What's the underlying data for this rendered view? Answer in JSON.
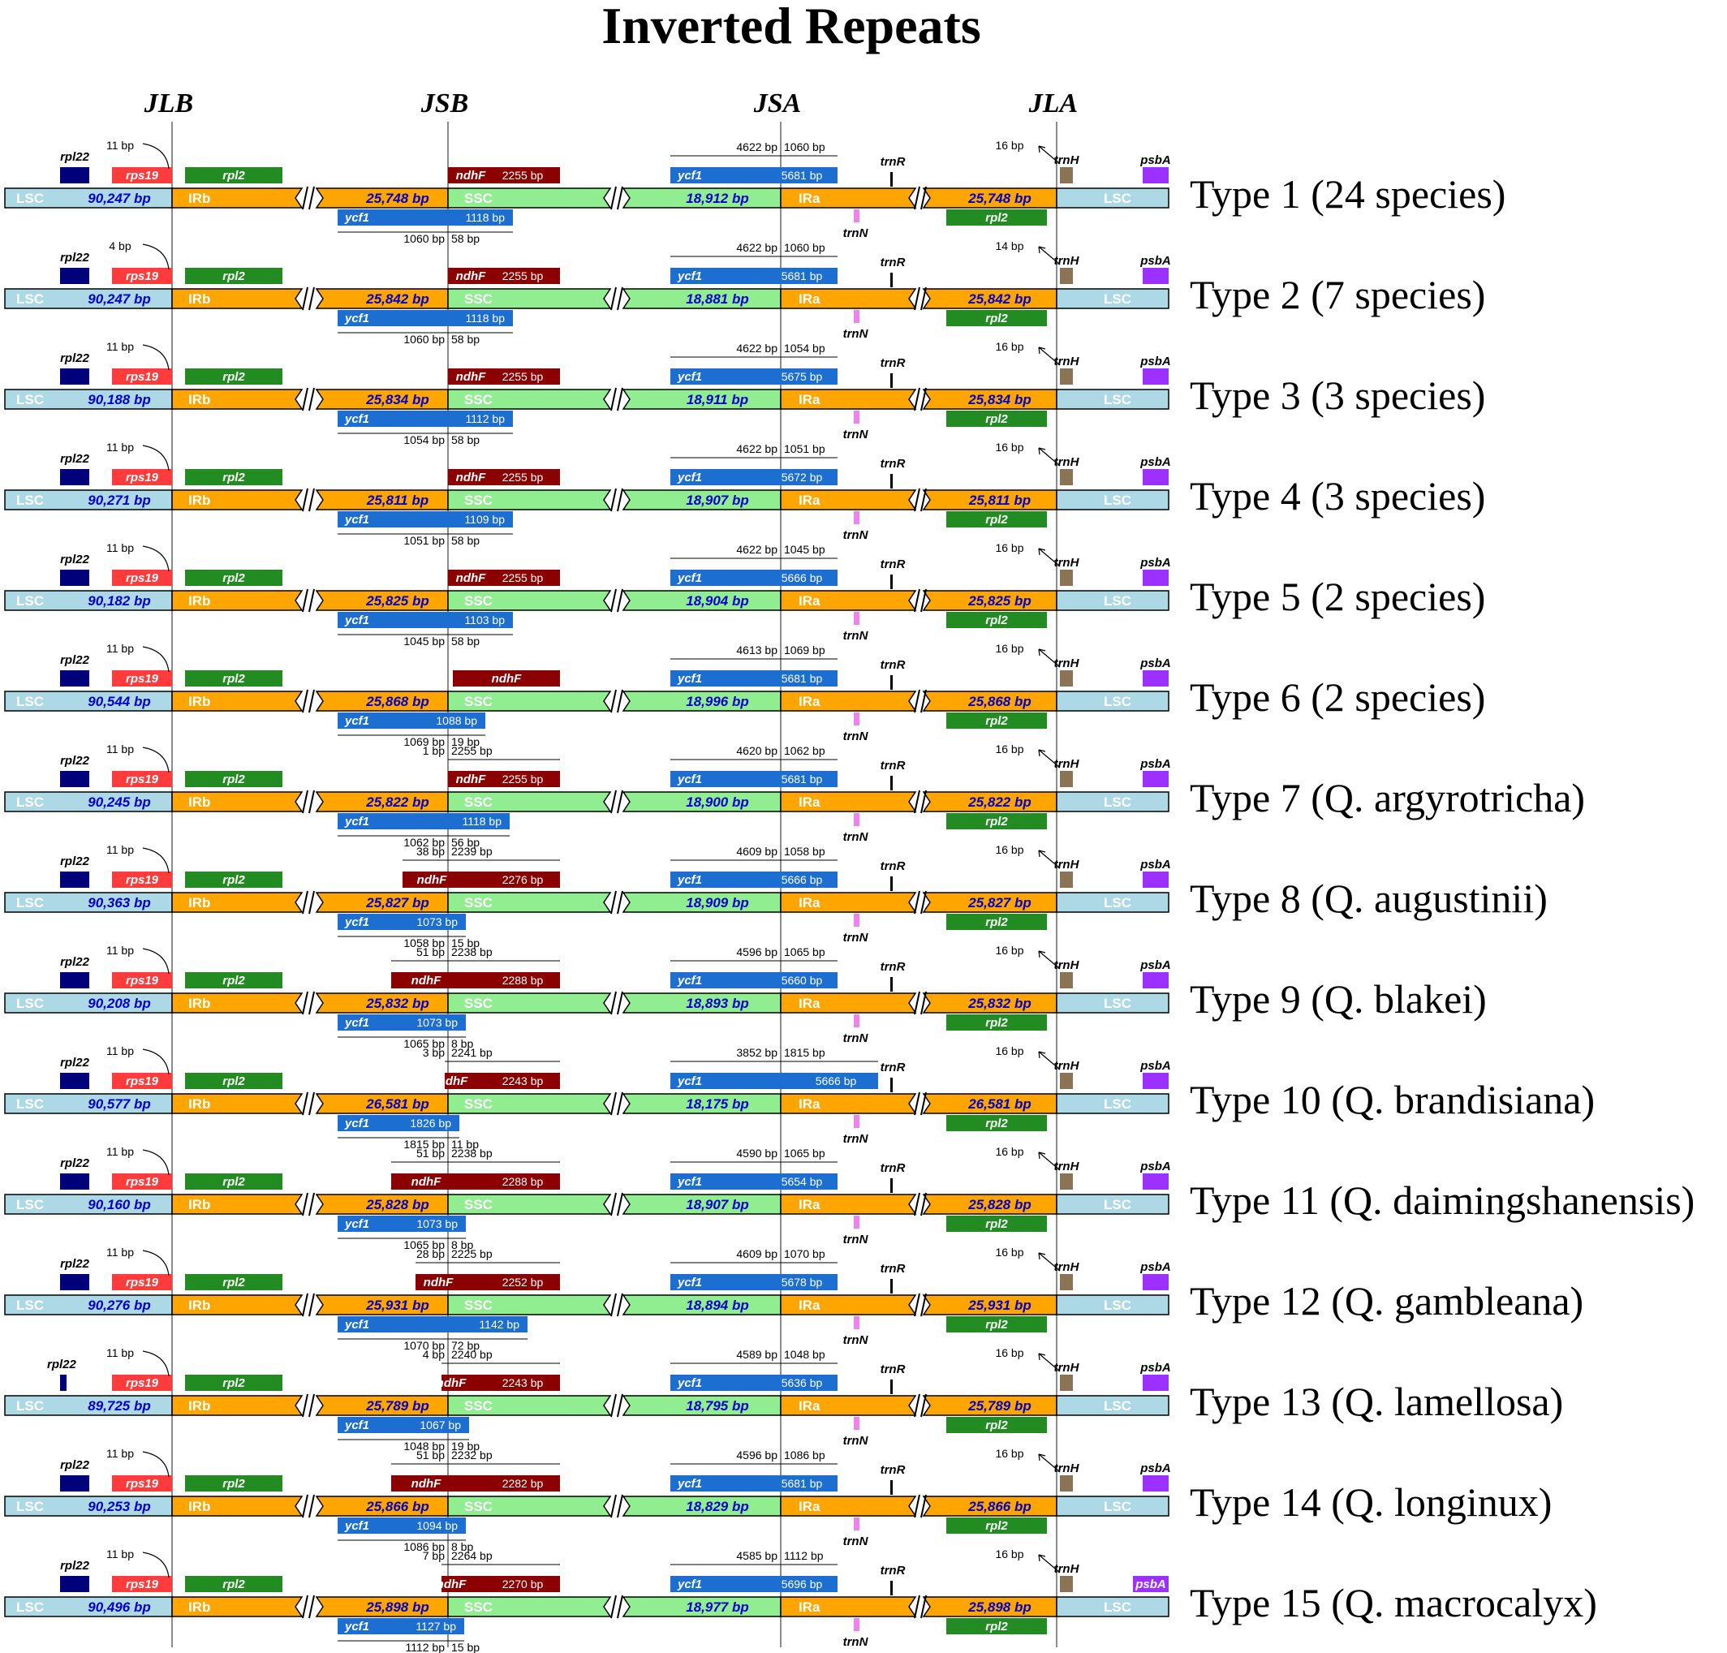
{
  "title": "Inverted Repeats",
  "junctions": [
    "JLB",
    "JSB",
    "JSA",
    "JLA"
  ],
  "region_labels": {
    "lsc": "LSC",
    "irb": "IRb",
    "ssc": "SSC",
    "ira": "IRa"
  },
  "gene_names": {
    "rpl22": "rpl22",
    "rps19": "rps19",
    "rpl2": "rpl2",
    "ndhF": "ndhF",
    "ycf1": "ycf1",
    "trnR": "trnR",
    "trnN": "trnN",
    "trnH": "trnH",
    "psbA": "psbA"
  },
  "colors": {
    "lsc": "#add8e6",
    "ir": "#ffa500",
    "ssc": "#90ee90",
    "rpl22": "#00007a",
    "rps19": "#ff3b3b",
    "rpl2": "#228b22",
    "ndhF": "#8b0000",
    "ycf1": "#1c6ed1",
    "trnR": "#000000",
    "trnN": "#ee82ee",
    "trnH": "#8b7355",
    "psbA": "#9b30ff",
    "size_text": "#0000cd",
    "label_text": "#ffffff"
  },
  "rows": [
    {
      "type": "Type 1 (24 species)",
      "lsc": "90,247 bp",
      "ir": "25,748 bp",
      "ssc": "18,912 bp",
      "rps19_gap": "11 bp",
      "ndhF_len": "2255 bp",
      "ndhF_split": [
        "",
        ""
      ],
      "ycf1b_len": "1118 bp",
      "ycf1b_split": [
        "1060 bp",
        "58 bp"
      ],
      "ycf1a_len": "5681 bp",
      "ycf1a_split": [
        "4622 bp",
        "1060 bp"
      ],
      "trnH_gap": "16 bp"
    },
    {
      "type": "Type 2 (7 species)",
      "lsc": "90,247 bp",
      "ir": "25,842 bp",
      "ssc": "18,881 bp",
      "rps19_gap": "4 bp",
      "ndhF_len": "2255 bp",
      "ndhF_split": [
        "",
        ""
      ],
      "ycf1b_len": "1118 bp",
      "ycf1b_split": [
        "1060 bp",
        "58 bp"
      ],
      "ycf1a_len": "5681 bp",
      "ycf1a_split": [
        "4622 bp",
        "1060 bp"
      ],
      "trnH_gap": "14 bp"
    },
    {
      "type": "Type 3 (3 species)",
      "lsc": "90,188 bp",
      "ir": "25,834 bp",
      "ssc": "18,911 bp",
      "rps19_gap": "11 bp",
      "ndhF_len": "2255 bp",
      "ndhF_split": [
        "",
        ""
      ],
      "ycf1b_len": "1112 bp",
      "ycf1b_split": [
        "1054 bp",
        "58 bp"
      ],
      "ycf1a_len": "5675 bp",
      "ycf1a_split": [
        "4622 bp",
        "1054 bp"
      ],
      "trnH_gap": "16 bp"
    },
    {
      "type": "Type 4 (3 species)",
      "lsc": "90,271 bp",
      "ir": "25,811 bp",
      "ssc": "18,907 bp",
      "rps19_gap": "11 bp",
      "ndhF_len": "2255 bp",
      "ndhF_split": [
        "",
        ""
      ],
      "ycf1b_len": "1109 bp",
      "ycf1b_split": [
        "1051 bp",
        "58 bp"
      ],
      "ycf1a_len": "5672 bp",
      "ycf1a_split": [
        "4622 bp",
        "1051 bp"
      ],
      "trnH_gap": "16 bp"
    },
    {
      "type": "Type 5 (2 species)",
      "lsc": "90,182 bp",
      "ir": "25,825 bp",
      "ssc": "18,904 bp",
      "rps19_gap": "11 bp",
      "ndhF_len": "2255 bp",
      "ndhF_split": [
        "",
        ""
      ],
      "ycf1b_len": "1103 bp",
      "ycf1b_split": [
        "1045 bp",
        "58 bp"
      ],
      "ycf1a_len": "5666 bp",
      "ycf1a_split": [
        "4622 bp",
        "1045 bp"
      ],
      "trnH_gap": "16 bp"
    },
    {
      "type": "Type 6 (2 species)",
      "lsc": "90,544 bp",
      "ir": "25,868 bp",
      "ssc": "18,996 bp",
      "rps19_gap": "11 bp",
      "ndhF_len": "",
      "ndhF_split": [
        "",
        ""
      ],
      "ycf1b_len": "1088 bp",
      "ycf1b_split": [
        "1069 bp",
        "19 bp"
      ],
      "ycf1a_len": "5681 bp",
      "ycf1a_split": [
        "4613 bp",
        "1069 bp"
      ],
      "trnH_gap": "16 bp"
    },
    {
      "type": "Type 7 (Q. argyrotricha)",
      "lsc": "90,245 bp",
      "ir": "25,822 bp",
      "ssc": "18,900 bp",
      "rps19_gap": "11 bp",
      "ndhF_len": "2255 bp",
      "ndhF_split": [
        "1 bp",
        "2255 bp"
      ],
      "ycf1b_len": "1118 bp",
      "ycf1b_split": [
        "1062 bp",
        "56 bp"
      ],
      "ycf1a_len": "5681 bp",
      "ycf1a_split": [
        "4620 bp",
        "1062 bp"
      ],
      "trnH_gap": "16 bp"
    },
    {
      "type": "Type 8 (Q. augustinii)",
      "lsc": "90,363 bp",
      "ir": "25,827 bp",
      "ssc": "18,909 bp",
      "rps19_gap": "11 bp",
      "ndhF_len": "2276 bp",
      "ndhF_split": [
        "38 bp",
        "2239 bp"
      ],
      "ycf1b_len": "1073 bp",
      "ycf1b_split": [
        "1058 bp",
        "15 bp"
      ],
      "ycf1a_len": "5666 bp",
      "ycf1a_split": [
        "4609 bp",
        "1058 bp"
      ],
      "trnH_gap": "16 bp"
    },
    {
      "type": "Type 9 (Q. blakei)",
      "lsc": "90,208 bp",
      "ir": "25,832 bp",
      "ssc": "18,893 bp",
      "rps19_gap": "11 bp",
      "ndhF_len": "2288 bp",
      "ndhF_split": [
        "51 bp",
        "2238 bp"
      ],
      "ycf1b_len": "1073 bp",
      "ycf1b_split": [
        "1065 bp",
        "8 bp"
      ],
      "ycf1a_len": "5660 bp",
      "ycf1a_split": [
        "4596 bp",
        "1065 bp"
      ],
      "trnH_gap": "16 bp"
    },
    {
      "type": "Type 10 (Q. brandisiana)",
      "lsc": "90,577 bp",
      "ir": "26,581 bp",
      "ssc": "18,175 bp",
      "rps19_gap": "11 bp",
      "ndhF_len": "2243 bp",
      "ndhF_split": [
        "3 bp",
        "2241 bp"
      ],
      "ycf1b_len": "1826 bp",
      "ycf1b_split": [
        "1815 bp",
        "11 bp"
      ],
      "ycf1a_len": "5666 bp",
      "ycf1a_split": [
        "3852 bp",
        "1815 bp"
      ],
      "trnH_gap": "16 bp"
    },
    {
      "type": "Type 11 (Q. daimingshanensis)",
      "lsc": "90,160 bp",
      "ir": "25,828 bp",
      "ssc": "18,907 bp",
      "rps19_gap": "11 bp",
      "ndhF_len": "2288 bp",
      "ndhF_split": [
        "51 bp",
        "2238 bp"
      ],
      "ycf1b_len": "1073 bp",
      "ycf1b_split": [
        "1065 bp",
        "8 bp"
      ],
      "ycf1a_len": "5654 bp",
      "ycf1a_split": [
        "4590 bp",
        "1065 bp"
      ],
      "trnH_gap": "16 bp"
    },
    {
      "type": "Type 12 (Q. gambleana)",
      "lsc": "90,276 bp",
      "ir": "25,931 bp",
      "ssc": "18,894 bp",
      "rps19_gap": "11 bp",
      "ndhF_len": "2252 bp",
      "ndhF_split": [
        "28 bp",
        "2225 bp"
      ],
      "ycf1b_len": "1142 bp",
      "ycf1b_split": [
        "1070 bp",
        "72 bp"
      ],
      "ycf1a_len": "5678 bp",
      "ycf1a_split": [
        "4609 bp",
        "1070 bp"
      ],
      "trnH_gap": "16 bp"
    },
    {
      "type": "Type 13 (Q. lamellosa)",
      "lsc": "89,725 bp",
      "ir": "25,789 bp",
      "ssc": "18,795 bp",
      "rps19_gap": "11 bp",
      "ndhF_len": "2243 bp",
      "ndhF_split": [
        "4 bp",
        "2240 bp"
      ],
      "ycf1b_len": "1067 bp",
      "ycf1b_split": [
        "1048 bp",
        "19 bp"
      ],
      "ycf1a_len": "5636 bp",
      "ycf1a_split": [
        "4589 bp",
        "1048 bp"
      ],
      "trnH_gap": "16 bp"
    },
    {
      "type": "Type 14 (Q. longinux)",
      "lsc": "90,253 bp",
      "ir": "25,866 bp",
      "ssc": "18,829 bp",
      "rps19_gap": "11 bp",
      "ndhF_len": "2282 bp",
      "ndhF_split": [
        "51 bp",
        "2232 bp"
      ],
      "ycf1b_len": "1094 bp",
      "ycf1b_split": [
        "1086 bp",
        "8 bp"
      ],
      "ycf1a_len": "5681 bp",
      "ycf1a_split": [
        "4596 bp",
        "1086 bp"
      ],
      "trnH_gap": "16 bp"
    },
    {
      "type": "Type 15 (Q. macrocalyx)",
      "lsc": "90,496 bp",
      "ir": "25,898 bp",
      "ssc": "18,977 bp",
      "rps19_gap": "11 bp",
      "ndhF_len": "2270 bp",
      "ndhF_split": [
        "7 bp",
        "2264 bp"
      ],
      "ycf1b_len": "1127 bp",
      "ycf1b_split": [
        "1112 bp",
        "15 bp"
      ],
      "ycf1a_len": "5696 bp",
      "ycf1a_split": [
        "4585 bp",
        "1112 bp"
      ],
      "trnH_gap": "16 bp"
    }
  ]
}
